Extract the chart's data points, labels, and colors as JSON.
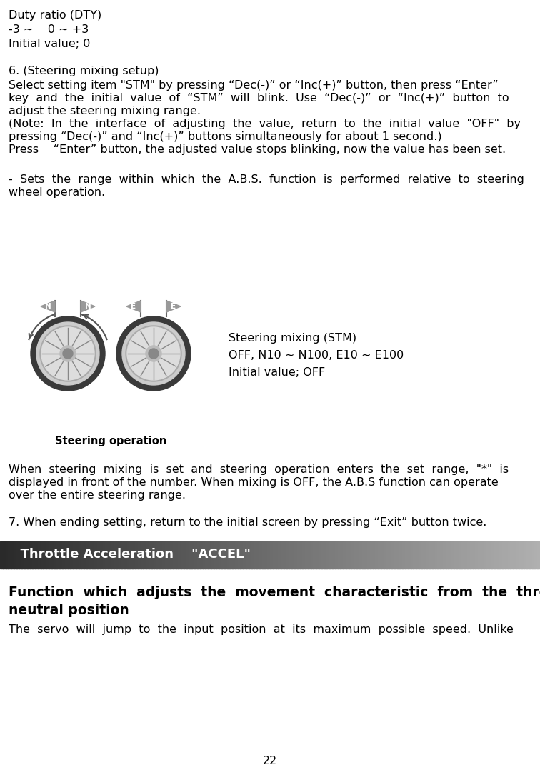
{
  "bg_color": "#ffffff",
  "text_color": "#000000",
  "page_number": "22",
  "line1": "Duty ratio (DTY)",
  "line2": "-3 ~    0 ~ +3",
  "line3": "Initial value; 0",
  "section6_title": "6. (Steering mixing setup)",
  "section6_p1": "Select setting item \"STM\" by pressing “Dec(-)” or “Inc(+)” button, then press “Enter”",
  "section6_p2": "key  and  the  initial  value  of  “STM”  will  blink.  Use  “Dec(-)”  or  “Inc(+)”  button  to",
  "section6_p3": "adjust the steering mixing range.",
  "section6_p4": "(Note:  In  the  interface  of  adjusting  the  value,  return  to  the  initial  value  \"OFF\"  by",
  "section6_p5": "pressing “Dec(-)” and “Inc(+)” buttons simultaneously for about 1 second.)",
  "section6_p6": "Press    “Enter” button, the adjusted value stops blinking, now the value has been set.",
  "stm_line1": "Steering mixing (STM)",
  "stm_line2": "OFF, N10 ~ N100, E10 ~ E100",
  "stm_line3": "Initial value; OFF",
  "steering_label": "Steering operation",
  "sets_line1": "-  Sets  the  range  within  which  the  A.B.S.  function  is  performed  relative  to  steering",
  "sets_line2": "wheel operation.",
  "when_line1": "When  steering  mixing  is  set  and  steering  operation  enters  the  set  range,  \"*\"  is",
  "when_line2": "displayed in front of the number. When mixing is OFF, the A.B.S function can operate",
  "when_line3": "over the entire steering range.",
  "section7": "7. When ending setting, return to the initial screen by pressing “Exit” button twice.",
  "header_text": "  Throttle Acceleration    \"ACCEL\"",
  "func_bold1": "Function  which  adjusts  the  movement  characteristic  from  the  throttle",
  "func_bold2": "neutral position",
  "func_normal": "The  servo  will  jump  to  the  input  position  at  its  maximum  possible  speed.  Unlike",
  "fs_base": 11.5,
  "fs_header": 13.0,
  "fs_bold": 13.5
}
